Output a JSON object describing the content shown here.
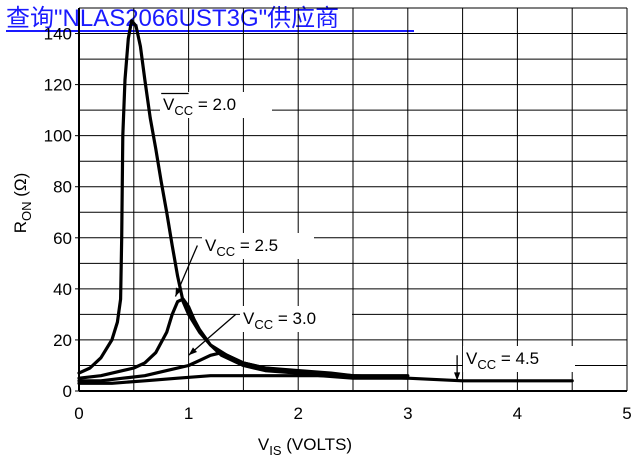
{
  "banner": {
    "text": "查询\"NLAS2066UST3G\"供应商",
    "color": "#1a1aff"
  },
  "chart_data": {
    "type": "line",
    "title": "",
    "xlabel": {
      "main": "V",
      "sub": "IS",
      "rest": " (VOLTS)"
    },
    "ylabel": {
      "main": "R",
      "sub": "ON",
      "rest": " (Ω)"
    },
    "xlim": [
      0,
      5
    ],
    "ylim": [
      0,
      150
    ],
    "xticks": [
      "0",
      "1",
      "2",
      "3",
      "4",
      "5"
    ],
    "yticks": [
      "0",
      "20",
      "40",
      "60",
      "80",
      "100",
      "120",
      "140"
    ],
    "ytick_values": [
      0,
      20,
      40,
      60,
      80,
      100,
      120,
      140
    ],
    "grid": true,
    "line_color": "#000000",
    "series": [
      {
        "name": "VCC = 2.0",
        "label_main": "V",
        "label_sub": "CC",
        "label_rest": " = 2.0",
        "points": [
          [
            0,
            7
          ],
          [
            0.1,
            9
          ],
          [
            0.2,
            13
          ],
          [
            0.3,
            20
          ],
          [
            0.35,
            27
          ],
          [
            0.38,
            36
          ],
          [
            0.39,
            60
          ],
          [
            0.4,
            100
          ],
          [
            0.42,
            122
          ],
          [
            0.45,
            138
          ],
          [
            0.48,
            145
          ],
          [
            0.52,
            143
          ],
          [
            0.56,
            135
          ],
          [
            0.6,
            122
          ],
          [
            0.65,
            107
          ],
          [
            0.7,
            95
          ],
          [
            0.75,
            82
          ],
          [
            0.8,
            70
          ],
          [
            0.85,
            57
          ],
          [
            0.9,
            45
          ],
          [
            0.95,
            35
          ],
          [
            1.0,
            30
          ],
          [
            1.1,
            23
          ],
          [
            1.2,
            18
          ],
          [
            1.35,
            14
          ],
          [
            1.5,
            11
          ],
          [
            1.7,
            9
          ],
          [
            1.9,
            8
          ],
          [
            2.2,
            7
          ],
          [
            2.5,
            6
          ],
          [
            2.8,
            6
          ],
          [
            3.0,
            6
          ]
        ]
      },
      {
        "name": "VCC = 2.5",
        "label_main": "V",
        "label_sub": "CC",
        "label_rest": " = 2.5",
        "points": [
          [
            0,
            5
          ],
          [
            0.2,
            6
          ],
          [
            0.4,
            8
          ],
          [
            0.5,
            9
          ],
          [
            0.6,
            11
          ],
          [
            0.7,
            15
          ],
          [
            0.8,
            23
          ],
          [
            0.85,
            30
          ],
          [
            0.9,
            35
          ],
          [
            0.95,
            36
          ],
          [
            1.0,
            33
          ],
          [
            1.05,
            28
          ],
          [
            1.1,
            24
          ],
          [
            1.2,
            18
          ],
          [
            1.3,
            14
          ],
          [
            1.5,
            10
          ],
          [
            1.7,
            8
          ],
          [
            2.0,
            7
          ],
          [
            2.2,
            6
          ],
          [
            2.5,
            6
          ]
        ]
      },
      {
        "name": "VCC = 3.0",
        "label_main": "V",
        "label_sub": "CC",
        "label_rest": " = 3.0",
        "points": [
          [
            0,
            4
          ],
          [
            0.2,
            4
          ],
          [
            0.4,
            5
          ],
          [
            0.6,
            6
          ],
          [
            0.8,
            8
          ],
          [
            1.0,
            10
          ],
          [
            1.1,
            12
          ],
          [
            1.2,
            14
          ],
          [
            1.3,
            15
          ],
          [
            1.4,
            13
          ],
          [
            1.5,
            11
          ],
          [
            1.7,
            9
          ],
          [
            2.0,
            8
          ],
          [
            2.3,
            7
          ],
          [
            2.5,
            6
          ],
          [
            3.0,
            5
          ]
        ]
      },
      {
        "name": "VCC = 4.5",
        "label_main": "V",
        "label_sub": "CC",
        "label_rest": " = 4.5",
        "points": [
          [
            0,
            3
          ],
          [
            0.3,
            3
          ],
          [
            0.6,
            4
          ],
          [
            0.9,
            5
          ],
          [
            1.2,
            6
          ],
          [
            1.5,
            6
          ],
          [
            1.8,
            6
          ],
          [
            2.2,
            6
          ],
          [
            2.5,
            5
          ],
          [
            3.0,
            5
          ],
          [
            3.5,
            4
          ],
          [
            4.0,
            4
          ],
          [
            4.5,
            4
          ]
        ]
      }
    ],
    "labels": [
      {
        "series": 0,
        "leader": [
          [
            1.0,
            116.5
          ],
          [
            0.75,
            116.5
          ]
        ]
      },
      {
        "series": 1,
        "leader": [
          [
            1.08,
            57
          ],
          [
            0.88,
            37
          ]
        ]
      },
      {
        "series": 2,
        "leader": [
          [
            1.43,
            30
          ],
          [
            1.0,
            14
          ]
        ]
      },
      {
        "series": 3,
        "leader": [
          [
            3.45,
            14
          ],
          [
            3.45,
            4
          ]
        ]
      }
    ]
  }
}
